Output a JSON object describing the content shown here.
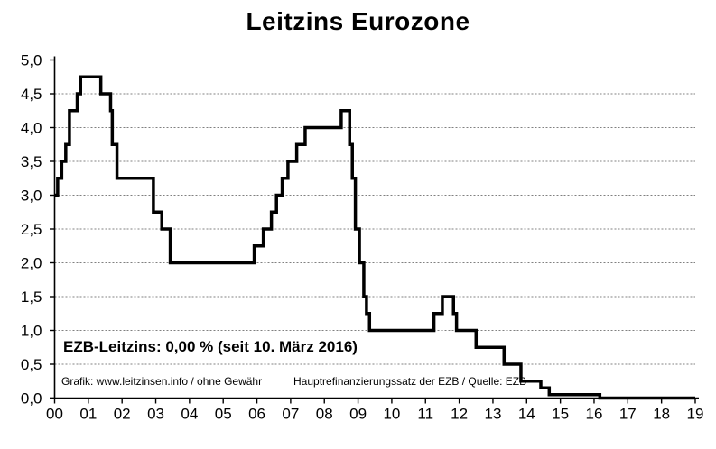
{
  "title": "Leitzins Eurozone",
  "annotation": {
    "main": "EZB-Leitzins: 0,00 % (seit 10. März 2016)",
    "source_left": "Grafik: www.leitzinsen.info / ohne Gewähr",
    "source_right": "Hauptrefinanzierungssatz der EZB / Quelle: EZB"
  },
  "colors": {
    "background": "#ffffff",
    "line": "#000000",
    "axis": "#000000",
    "grid": "#808080",
    "text": "#000000"
  },
  "chart_data": {
    "type": "line",
    "step": true,
    "title": "Leitzins Eurozone",
    "xlabel": "",
    "ylabel": "",
    "xlim": [
      2000,
      2019
    ],
    "ylim": [
      0,
      5
    ],
    "grid": "horizontal-dashed",
    "legend": "none",
    "x_tick_labels": [
      "00",
      "01",
      "02",
      "03",
      "04",
      "05",
      "06",
      "07",
      "08",
      "09",
      "10",
      "11",
      "12",
      "13",
      "14",
      "15",
      "16",
      "17",
      "18",
      "19"
    ],
    "y_tick_labels": [
      "0,0",
      "0,5",
      "1,0",
      "1,5",
      "2,0",
      "2,5",
      "3,0",
      "3,5",
      "4,0",
      "4,5",
      "5,0"
    ],
    "y_tick_step": 0.5,
    "series": [
      {
        "name": "EZB-Leitzins (Hauptrefinanzierungssatz)",
        "unit": "%",
        "steps": [
          [
            2000.0,
            3.0
          ],
          [
            2000.09,
            3.25
          ],
          [
            2000.21,
            3.5
          ],
          [
            2000.33,
            3.75
          ],
          [
            2000.44,
            4.25
          ],
          [
            2000.67,
            4.5
          ],
          [
            2000.77,
            4.75
          ],
          [
            2001.37,
            4.5
          ],
          [
            2001.66,
            4.25
          ],
          [
            2001.71,
            3.75
          ],
          [
            2001.85,
            3.25
          ],
          [
            2002.93,
            2.75
          ],
          [
            2003.18,
            2.5
          ],
          [
            2003.43,
            2.0
          ],
          [
            2005.92,
            2.25
          ],
          [
            2006.19,
            2.5
          ],
          [
            2006.43,
            2.75
          ],
          [
            2006.58,
            3.0
          ],
          [
            2006.75,
            3.25
          ],
          [
            2006.92,
            3.5
          ],
          [
            2007.18,
            3.75
          ],
          [
            2007.43,
            4.0
          ],
          [
            2008.5,
            4.25
          ],
          [
            2008.75,
            3.75
          ],
          [
            2008.83,
            3.25
          ],
          [
            2008.92,
            2.5
          ],
          [
            2009.04,
            2.0
          ],
          [
            2009.17,
            1.5
          ],
          [
            2009.25,
            1.25
          ],
          [
            2009.34,
            1.0
          ],
          [
            2011.25,
            1.25
          ],
          [
            2011.5,
            1.5
          ],
          [
            2011.83,
            1.25
          ],
          [
            2011.92,
            1.0
          ],
          [
            2012.5,
            0.75
          ],
          [
            2013.33,
            0.5
          ],
          [
            2013.83,
            0.25
          ],
          [
            2014.42,
            0.15
          ],
          [
            2014.67,
            0.05
          ],
          [
            2016.17,
            0.0
          ]
        ],
        "end_x": 2019.0
      }
    ]
  }
}
